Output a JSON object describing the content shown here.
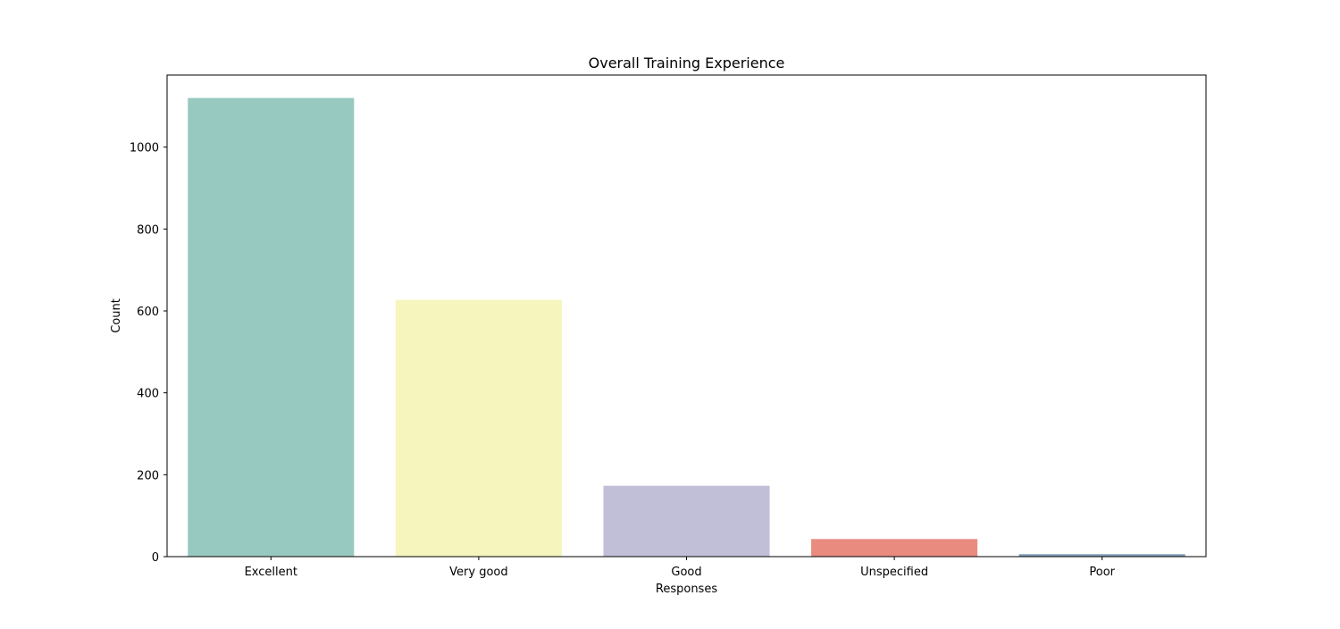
{
  "chart_data": {
    "type": "bar",
    "title": "Overall Training Experience",
    "xlabel": "Responses",
    "ylabel": "Count",
    "categories": [
      "Excellent",
      "Very good",
      "Good",
      "Unspecified",
      "Poor"
    ],
    "values": [
      1120,
      627,
      173,
      43,
      6
    ],
    "colors": [
      "#98c9c0",
      "#f6f5bd",
      "#c1bfd8",
      "#ea8b80",
      "#809fba"
    ],
    "ylim": [
      0,
      1176
    ],
    "yticks": [
      0,
      200,
      400,
      600,
      800,
      1000
    ],
    "grid": false,
    "legend": "none"
  }
}
